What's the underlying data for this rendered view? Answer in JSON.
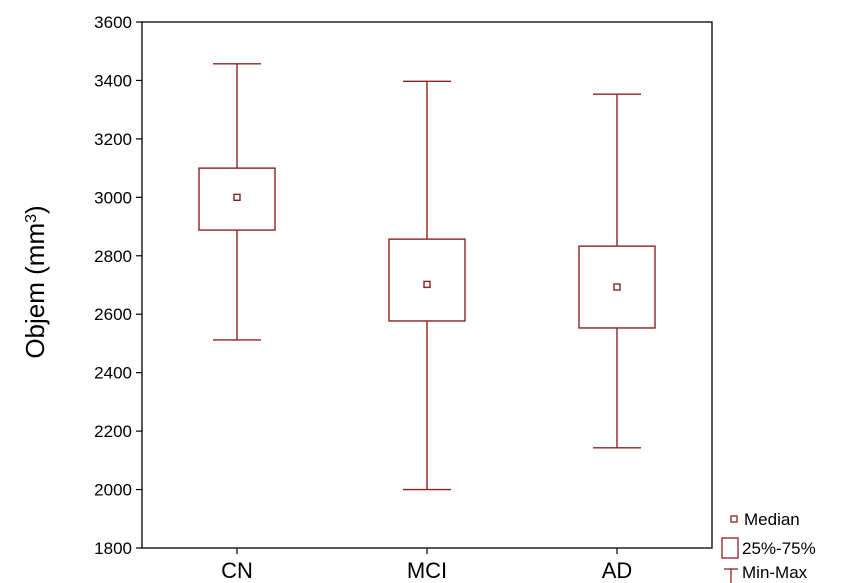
{
  "chart_data": {
    "type": "box",
    "categories": [
      "CN",
      "MCI",
      "AD"
    ],
    "boxes": [
      {
        "category": "CN",
        "min": 2512,
        "q1": 2888,
        "median": 3000,
        "q3": 3100,
        "max": 3457
      },
      {
        "category": "MCI",
        "min": 2000,
        "q1": 2577,
        "median": 2702,
        "q3": 2857,
        "max": 3397
      },
      {
        "category": "AD",
        "min": 2143,
        "q1": 2553,
        "median": 2693,
        "q3": 2833,
        "max": 3353
      }
    ],
    "ylabel_main": "Objem (mm",
    "ylabel_sup": "3",
    "ylabel_end": ")",
    "ylim": [
      1800,
      3600
    ],
    "yticks": [
      1800,
      2000,
      2200,
      2400,
      2600,
      2800,
      3000,
      3200,
      3400,
      3600
    ],
    "grid": false,
    "legend_position": "bottom-right",
    "legend": {
      "median_label": "Median",
      "box_label": "25%-75%",
      "whisker_label": "Min-Max"
    },
    "colors": {
      "box": "#8b2222",
      "axis": "#000000"
    }
  }
}
